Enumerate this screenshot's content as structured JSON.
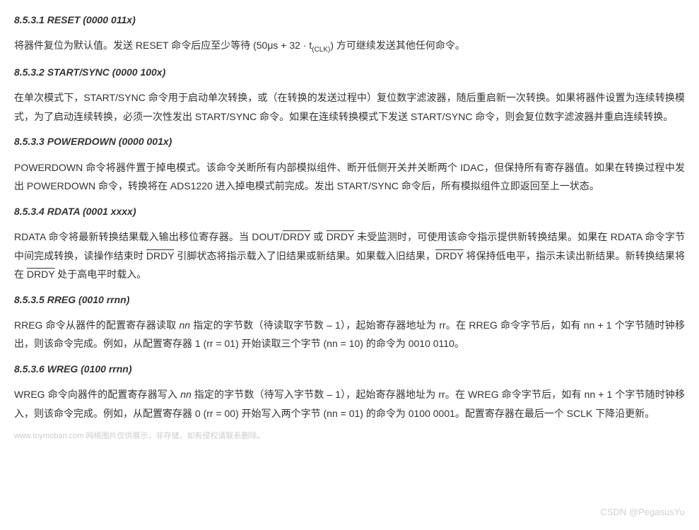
{
  "sections": [
    {
      "heading": "8.5.3.1   RESET (0000 011x)",
      "paragraph_html": "将器件复位为默认值。发送 RESET 命令后应至少等待 (50μs + 32 · t<span class=\"subscript\">(CLK)</span>) 方可继续发送其他任何命令。"
    },
    {
      "heading": "8.5.3.2   START/SYNC (0000 100x)",
      "paragraph_html": "在单次模式下，START/SYNC 命令用于启动单次转换，或（在转换的发送过程中）复位数字滤波器，随后重启新一次转换。如果将器件设置为连续转换模式，为了启动连续转换，必须一次性发出 START/SYNC 命令。如果在连续转换模式下发送 START/SYNC 命令，则会复位数字滤波器并重启连续转换。"
    },
    {
      "heading": "8.5.3.3   POWERDOWN (0000 001x)",
      "paragraph_html": "POWERDOWN 命令将器件置于掉电模式。该命令关断所有内部模拟组件、断开低侧开关并关断两个 IDAC，但保持所有寄存器值。如果在转换过程中发出 POWERDOWN 命令，转换将在 ADS1220 进入掉电模式前完成。发出 START/SYNC 命令后，所有模拟组件立即返回至上一状态。"
    },
    {
      "heading": "8.5.3.4   RDATA (0001 xxxx)",
      "paragraph_html": "RDATA 命令将最新转换结果载入输出移位寄存器。当 DOUT/<span class=\"overline\">DRDY</span> 或 <span class=\"overline\">DRDY</span> 未受监测时，可使用该命令指示提供新转换结果。如果在 RDATA 命令字节中间完成转换，读操作结束时 <span class=\"overline\">DRDY</span> 引脚状态将指示载入了旧结果或新结果。如果载入旧结果，<span class=\"overline\">DRDY</span> 将保持低电平，指示未读出新结果。新转换结果将在 <span class=\"overline\">DRDY</span> 处于高电平时载入。"
    },
    {
      "heading": "8.5.3.5   RREG (0010 rrnn)",
      "paragraph_html": "RREG 命令从器件的配置寄存器读取 <i>nn</i> 指定的字节数（待读取字节数 – 1），起始寄存器地址为 rr。在 RREG 命令字节后，如有 nn + 1 个字节随时钟移出，则该命令完成。例如，从配置寄存器 1 (rr = 01) 开始读取三个字节 (nn = 10) 的命令为 0010 0110。"
    },
    {
      "heading": "8.5.3.6   WREG (0100 rrnn)",
      "paragraph_html": "WREG 命令向器件的配置寄存器写入 <i>nn</i> 指定的字节数（待写入字节数 – 1），起始寄存器地址为 rr。在 WREG 命令字节后，如有 nn + 1 个字节随时钟移入，则该命令完成。例如，从配置寄存器 0 (rr = 00) 开始写入两个字节 (nn = 01) 的命令为 0100 0001。配置寄存器在最后一个 SCLK 下降沿更新。"
    }
  ],
  "footer_text": "www.toymoban.com  网络图片仅供展示，非存储，如有侵权请联系删除。",
  "watermark_text": "CSDN @PegasusYu"
}
